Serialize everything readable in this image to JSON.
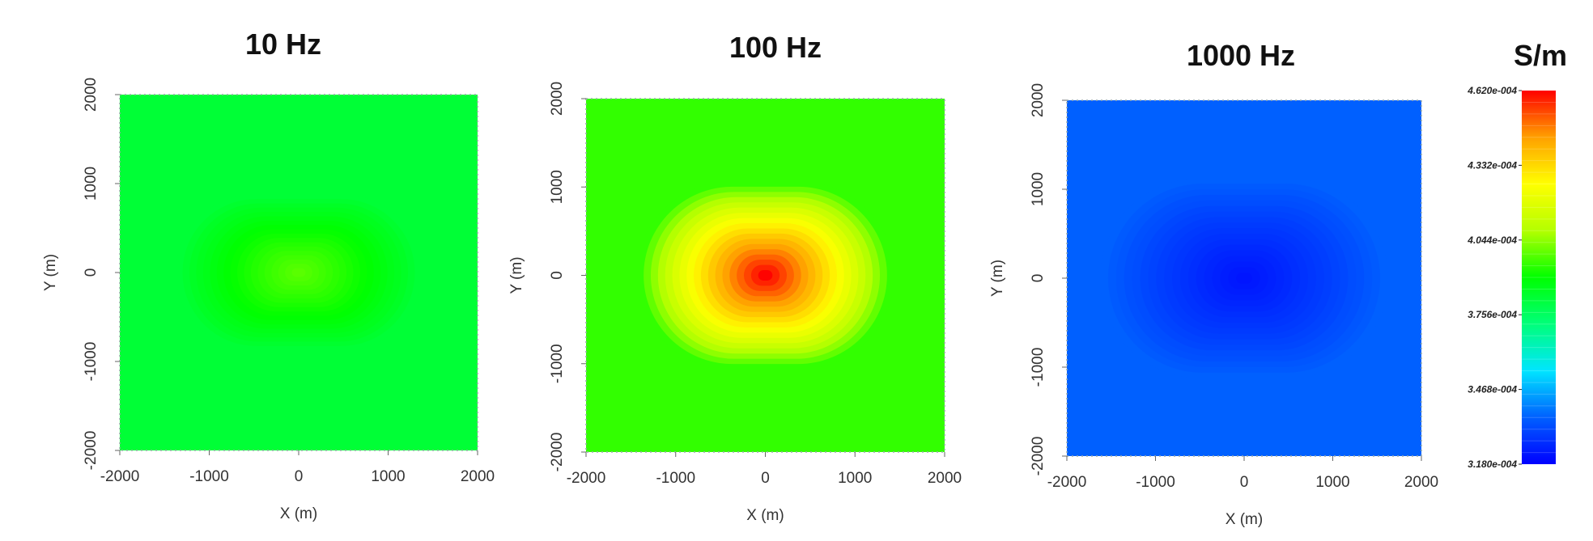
{
  "unit_label": "S/m",
  "colorbar": {
    "labels": [
      "4.620e-004",
      "4.332e-004",
      "4.044e-004",
      "3.756e-004",
      "3.468e-004",
      "3.180e-004"
    ],
    "min": 0.000318,
    "max": 0.000462,
    "colors": [
      "#0000ff",
      "#0060ff",
      "#00e5ff",
      "#00ff7a",
      "#00ff00",
      "#b4ff00",
      "#ffff00",
      "#ffa000",
      "#ff0000"
    ]
  },
  "chart_data": [
    {
      "type": "heatmap",
      "title": "10 Hz",
      "xlabel": "X (m)",
      "ylabel": "Y (m)",
      "xlim": [
        -2000,
        2000
      ],
      "ylim": [
        -2000,
        2000
      ],
      "x_ticks": [
        "-2000",
        "-1000",
        "0",
        "1000",
        "2000"
      ],
      "y_ticks": [
        "2000",
        "1000",
        "0",
        "-1000",
        "-2000"
      ],
      "background_value": 0.000382,
      "peak_value": 0.000399,
      "anomaly_center": [
        0,
        0
      ],
      "anomaly_halfwidth": [
        1100,
        700
      ]
    },
    {
      "type": "heatmap",
      "title": "100 Hz",
      "xlabel": "X (m)",
      "ylabel": "Y (m)",
      "xlim": [
        -2000,
        2000
      ],
      "ylim": [
        -2000,
        2000
      ],
      "x_ticks": [
        "-2000",
        "-1000",
        "0",
        "1000",
        "2000"
      ],
      "y_ticks": [
        "2000",
        "1000",
        "0",
        "-1000",
        "-2000"
      ],
      "background_value": 0.000395,
      "peak_value": 0.000462,
      "anomaly_center": [
        0,
        0
      ],
      "anomaly_halfwidth": [
        1150,
        850
      ]
    },
    {
      "type": "heatmap",
      "title": "1000 Hz",
      "xlabel": "X (m)",
      "ylabel": "Y (m)",
      "xlim": [
        -2000,
        2000
      ],
      "ylim": [
        -2000,
        2000
      ],
      "x_ticks": [
        "-2000",
        "-1000",
        "0",
        "1000",
        "2000"
      ],
      "y_ticks": [
        "2000",
        "1000",
        "0",
        "-1000",
        "-2000"
      ],
      "background_value": 0.000336,
      "peak_value": 0.000322,
      "anomaly_center": [
        0,
        0
      ],
      "anomaly_halfwidth": [
        1300,
        900
      ]
    }
  ]
}
